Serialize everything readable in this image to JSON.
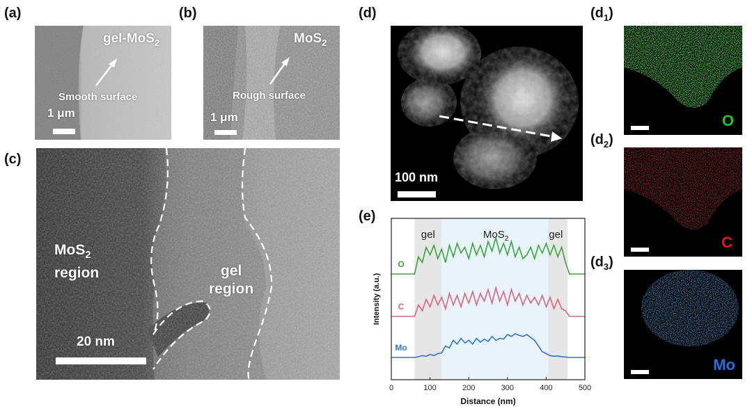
{
  "panels": {
    "a": {
      "label": "(a)",
      "material_main": "gel-MoS",
      "material_sub": "2",
      "annotation": "Smooth surface",
      "scale": "1 μm"
    },
    "b": {
      "label": "(b)",
      "material_main": "MoS",
      "material_sub": "2",
      "annotation": "Rough surface",
      "scale": "1 μm"
    },
    "c": {
      "label": "(c)",
      "region1_main": "MoS",
      "region1_sub": "2",
      "region1_line2": "region",
      "region2_line1": "gel",
      "region2_line2": "region",
      "scale": "20 nm"
    },
    "d": {
      "label": "(d)",
      "scale": "100 nm"
    },
    "d1": {
      "label_main": "(d",
      "label_sub": "1",
      "label_end": ")",
      "element": "O",
      "color": "#22c02a"
    },
    "d2": {
      "label_main": "(d",
      "label_sub": "2",
      "label_end": ")",
      "element": "C",
      "color": "#e01818"
    },
    "d3": {
      "label_main": "(d",
      "label_sub": "3",
      "label_end": ")",
      "element": "Mo",
      "color": "#2a6fd6"
    },
    "e": {
      "label": "(e)"
    }
  },
  "chart_data": {
    "type": "line",
    "title": "",
    "xlabel": "Distance (nm)",
    "ylabel": "Intensity (a.u.)",
    "xlim": [
      0,
      500
    ],
    "xticks": [
      "0",
      "100",
      "200",
      "300",
      "400",
      "500"
    ],
    "region_labels": [
      "gel",
      "MoS",
      "gel"
    ],
    "region_label_sub": "2",
    "regions": [
      {
        "name": "gel",
        "x": [
          60,
          130
        ]
      },
      {
        "name": "MoS2",
        "x": [
          130,
          405
        ]
      },
      {
        "name": "gel",
        "x": [
          405,
          455
        ]
      }
    ],
    "x": [
      0,
      60,
      70,
      80,
      90,
      100,
      110,
      120,
      130,
      140,
      150,
      160,
      170,
      180,
      190,
      200,
      210,
      220,
      230,
      240,
      250,
      260,
      270,
      280,
      290,
      300,
      310,
      320,
      330,
      340,
      350,
      360,
      370,
      380,
      390,
      400,
      410,
      420,
      430,
      440,
      450,
      460,
      500
    ],
    "series": [
      {
        "name": "O",
        "color": "#3aa63a",
        "offset": 2,
        "values": [
          0,
          0,
          0.45,
          0.3,
          0.7,
          0.5,
          0.75,
          0.4,
          0.65,
          0.3,
          0.75,
          0.45,
          0.8,
          0.55,
          0.7,
          0.4,
          0.8,
          0.5,
          0.75,
          0.45,
          0.85,
          0.6,
          0.95,
          0.55,
          0.8,
          0.5,
          0.85,
          0.45,
          0.7,
          0.4,
          0.5,
          0.7,
          0.4,
          0.75,
          0.55,
          0.8,
          0.5,
          0.75,
          0.45,
          0.7,
          0.3,
          0,
          0
        ]
      },
      {
        "name": "C",
        "color": "#d9667a",
        "offset": 1,
        "values": [
          0,
          0,
          0.3,
          0.15,
          0.45,
          0.25,
          0.55,
          0.3,
          0.5,
          0.2,
          0.6,
          0.3,
          0.55,
          0.25,
          0.6,
          0.35,
          0.65,
          0.3,
          0.6,
          0.4,
          0.7,
          0.35,
          0.75,
          0.4,
          0.65,
          0.3,
          0.7,
          0.4,
          0.6,
          0.3,
          0.55,
          0.35,
          0.5,
          0.3,
          0.55,
          0.25,
          0.5,
          0.2,
          0.45,
          0.2,
          0.15,
          0,
          0
        ]
      },
      {
        "name": "Mo",
        "color": "#2a75d8",
        "offset": 0,
        "values": [
          0,
          0,
          0.02,
          0.05,
          0.03,
          0.08,
          0.05,
          0.1,
          0.12,
          0.3,
          0.25,
          0.45,
          0.35,
          0.5,
          0.38,
          0.45,
          0.35,
          0.5,
          0.4,
          0.48,
          0.42,
          0.55,
          0.45,
          0.5,
          0.48,
          0.6,
          0.55,
          0.62,
          0.58,
          0.55,
          0.6,
          0.52,
          0.45,
          0.3,
          0.15,
          0.1,
          0.05,
          0.03,
          0.04,
          0.02,
          0.01,
          0,
          0
        ]
      }
    ]
  }
}
